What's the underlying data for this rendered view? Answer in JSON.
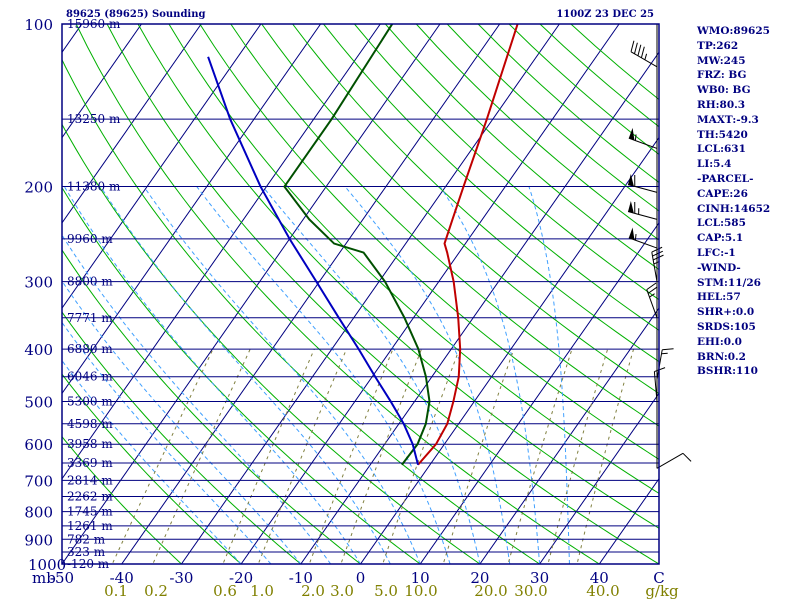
{
  "header": {
    "station": "89625 (89625) Sounding",
    "valid_time": "1100Z 23 DEC 25"
  },
  "colors": {
    "border": "#000080",
    "isobar": "#000080",
    "isotherm": "#000080",
    "dry_adiabat": "#00b000",
    "moist_adiabat": "#40a0ff",
    "mixing_ratio": "#808040",
    "temperature": "#c00000",
    "dewpoint": "#005000",
    "parcel": "#0000c0",
    "wind": "#000000",
    "text": "#000080",
    "mix_label": "#808000"
  },
  "indices": [
    "WMO:89625",
    "TP:262",
    "MW:245",
    "FRZ: BG",
    "WB0: BG",
    "RH:80.3",
    "MAXT:-9.3",
    "TH:5420",
    "LCL:631",
    "LI:5.4",
    "-PARCEL-",
    "CAPE:26",
    "CINH:14652",
    "LCL:585",
    "CAP:5.1",
    "LFC:-1",
    "-WIND-",
    "STM:11/26",
    "HEL:57",
    "SHR+:0.0",
    "SRDS:105",
    "EHI:0.0",
    "BRN:0.2",
    "BSHR:110"
  ],
  "chart_data": {
    "type": "line",
    "chart_kind": "Skew-T log-P thermodynamic diagram",
    "title": "89625 (89625) Sounding",
    "valid_time": "1100Z 23 DEC 25",
    "pressure_range_mb": [
      1000,
      100
    ],
    "temperature_range_c": [
      -50,
      50
    ],
    "pressure_ticks": [
      100,
      200,
      300,
      400,
      500,
      600,
      700,
      800,
      900,
      1000
    ],
    "pressure_unit_label": "mb",
    "temperature_ticks": [
      -50,
      -40,
      -30,
      -20,
      -10,
      0,
      10,
      20,
      30,
      40
    ],
    "temperature_tick_labels": [
      "-50",
      "-40",
      "-30",
      "-20",
      "-10",
      "0",
      "10",
      "20",
      "30",
      "40"
    ],
    "temperature_unit_label": "C",
    "mixing_ratio_labels": [
      "0.1",
      "0.2",
      "0.6",
      "1.0",
      "2.0",
      "3.0",
      "5.0",
      "10.0",
      "20.0",
      "30.0",
      "40.0"
    ],
    "mixing_ratio_values": [
      0.1,
      0.2,
      0.6,
      1.0,
      2.0,
      3.0,
      5.0,
      10.0,
      20.0,
      30.0,
      40.0
    ],
    "mixing_ratio_unit": "g/kg",
    "heights": [
      {
        "p": 100,
        "label": "15960 m"
      },
      {
        "p": 150,
        "label": "13250 m"
      },
      {
        "p": 200,
        "label": "11380 m"
      },
      {
        "p": 250,
        "label": "9960 m"
      },
      {
        "p": 300,
        "label": "8800 m"
      },
      {
        "p": 350,
        "label": "7771 m"
      },
      {
        "p": 400,
        "label": "6880 m"
      },
      {
        "p": 450,
        "label": "6046 m"
      },
      {
        "p": 500,
        "label": "5300 m"
      },
      {
        "p": 550,
        "label": "4598 m"
      },
      {
        "p": 600,
        "label": "3958 m"
      },
      {
        "p": 650,
        "label": "3369 m"
      },
      {
        "p": 700,
        "label": "2814 m"
      },
      {
        "p": 750,
        "label": "2262 m"
      },
      {
        "p": 800,
        "label": "1745 m"
      },
      {
        "p": 850,
        "label": "1261 m"
      },
      {
        "p": 900,
        "label": "782 m"
      },
      {
        "p": 950,
        "label": "323 m"
      },
      {
        "p": 1000,
        "label": "-120 m"
      }
    ],
    "series": [
      {
        "name": "Temperature",
        "color_key": "temperature",
        "points": [
          [
            655,
            -2.0
          ],
          [
            600,
            -1.4
          ],
          [
            550,
            -1.9
          ],
          [
            500,
            -3.5
          ],
          [
            450,
            -5.5
          ],
          [
            400,
            -8.5
          ],
          [
            350,
            -12.5
          ],
          [
            300,
            -17.5
          ],
          [
            265,
            -22
          ],
          [
            255,
            -23.5
          ],
          [
            230,
            -25
          ],
          [
            200,
            -27
          ],
          [
            150,
            -31
          ],
          [
            100,
            -37
          ]
        ]
      },
      {
        "name": "Dewpoint",
        "color_key": "dewpoint",
        "points": [
          [
            655,
            -4.7
          ],
          [
            600,
            -4.5
          ],
          [
            550,
            -5.5
          ],
          [
            500,
            -7.5
          ],
          [
            450,
            -11
          ],
          [
            400,
            -15.5
          ],
          [
            350,
            -21.5
          ],
          [
            300,
            -29
          ],
          [
            265,
            -36
          ],
          [
            255,
            -42
          ],
          [
            230,
            -49
          ],
          [
            200,
            -57
          ],
          [
            150,
            -57
          ],
          [
            100,
            -58
          ]
        ]
      },
      {
        "name": "Parcel",
        "color_key": "parcel",
        "points": [
          [
            655,
            -2.0
          ],
          [
            600,
            -5.3
          ],
          [
            550,
            -9.2
          ],
          [
            500,
            -14
          ],
          [
            450,
            -19.5
          ],
          [
            400,
            -25.5
          ],
          [
            350,
            -32.5
          ],
          [
            300,
            -40.5
          ],
          [
            250,
            -50
          ],
          [
            200,
            -61
          ],
          [
            150,
            -74
          ],
          [
            115,
            -85
          ]
        ]
      }
    ],
    "wind_barbs": [
      {
        "p": 665,
        "speed_kt": 10,
        "dir_deg": 60
      },
      {
        "p": 500,
        "speed_kt": 10,
        "dir_deg": 355
      },
      {
        "p": 455,
        "speed_kt": 15,
        "dir_deg": 10
      },
      {
        "p": 350,
        "speed_kt": 25,
        "dir_deg": 340
      },
      {
        "p": 300,
        "speed_kt": 35,
        "dir_deg": 350
      },
      {
        "p": 260,
        "speed_kt": 55,
        "dir_deg": 290
      },
      {
        "p": 230,
        "speed_kt": 65,
        "dir_deg": 285
      },
      {
        "p": 205,
        "speed_kt": 60,
        "dir_deg": 285
      },
      {
        "p": 170,
        "speed_kt": 55,
        "dir_deg": 290
      },
      {
        "p": 120,
        "speed_kt": 45,
        "dir_deg": 300
      }
    ]
  }
}
